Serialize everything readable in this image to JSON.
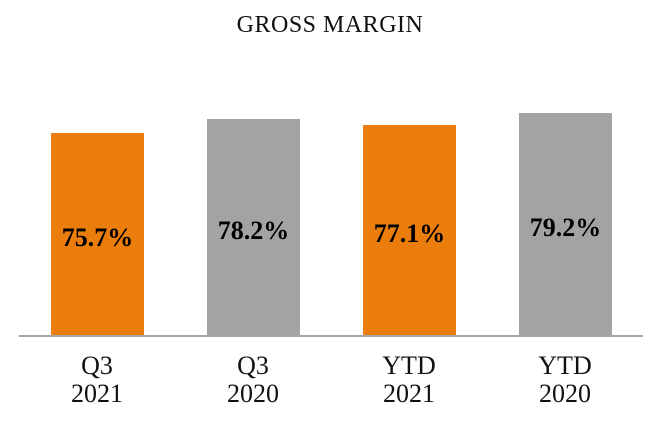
{
  "page": {
    "background": "#ffffff"
  },
  "chart_data": {
    "type": "bar",
    "title": "GROSS MARGIN",
    "categories": [
      [
        "Q3",
        "2021"
      ],
      [
        "Q3",
        "2020"
      ],
      [
        "YTD",
        "2021"
      ],
      [
        "YTD",
        "2020"
      ]
    ],
    "values": [
      75.7,
      78.2,
      77.1,
      79.2
    ],
    "value_labels": [
      "75.7%",
      "78.2%",
      "77.1%",
      "79.2%"
    ],
    "bar_colors": [
      "#EA7D0B",
      "#A2A4A4",
      "#EA7D0B",
      "#A2A4A4"
    ],
    "value_label_color": "#000000",
    "axis_line_color": "#A6A6A6",
    "xlabel": "",
    "ylabel": "",
    "ylim": [
      40,
      85
    ],
    "grid": false,
    "legend": false
  }
}
